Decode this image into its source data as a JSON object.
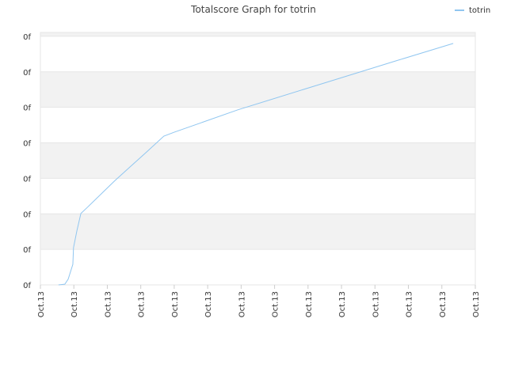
{
  "chart_data": {
    "type": "line",
    "title": "Totalscore Graph for totrin",
    "x": [
      0.54,
      0.73,
      0.83,
      0.97,
      0.99,
      1.09,
      1.21,
      1.4,
      1.87,
      2.23,
      2.7,
      3.17,
      3.69,
      4.0,
      5.9,
      8.26,
      10.63,
      12.34
    ],
    "series": [
      {
        "name": "totrin",
        "color": "#90c6f0",
        "values": [
          0,
          0.02,
          0.16,
          0.58,
          1.05,
          1.52,
          2.01,
          2.18,
          2.61,
          2.94,
          3.34,
          3.74,
          4.19,
          4.3,
          4.93,
          5.62,
          6.31,
          6.8
        ]
      }
    ],
    "xlim": [
      0,
      13
    ],
    "xticks": [
      {
        "value": 0,
        "label": "Oct.13"
      },
      {
        "value": 1,
        "label": "Oct.13"
      },
      {
        "value": 2,
        "label": "Oct.13"
      },
      {
        "value": 3,
        "label": "Oct.13"
      },
      {
        "value": 4,
        "label": "Oct.13"
      },
      {
        "value": 5,
        "label": "Oct.13"
      },
      {
        "value": 6,
        "label": "Oct.13"
      },
      {
        "value": 7,
        "label": "Oct.13"
      },
      {
        "value": 8,
        "label": "Oct.13"
      },
      {
        "value": 9,
        "label": "Oct.13"
      },
      {
        "value": 10,
        "label": "Oct.13"
      },
      {
        "value": 11,
        "label": "Oct.13"
      },
      {
        "value": 12,
        "label": "Oct.13"
      },
      {
        "value": 13,
        "label": "Oct.13"
      }
    ],
    "ylim": [
      0,
      7.11
    ],
    "yticks": [
      {
        "value": 0,
        "label": "0f"
      },
      {
        "value": 1,
        "label": "0f"
      },
      {
        "value": 2,
        "label": "0f"
      },
      {
        "value": 3,
        "label": "0f"
      },
      {
        "value": 4,
        "label": "0f"
      },
      {
        "value": 5,
        "label": "0f"
      },
      {
        "value": 6,
        "label": "0f"
      },
      {
        "value": 7,
        "label": "0f"
      }
    ],
    "grid": true,
    "alternate_bands": true,
    "legend": "top-right"
  }
}
